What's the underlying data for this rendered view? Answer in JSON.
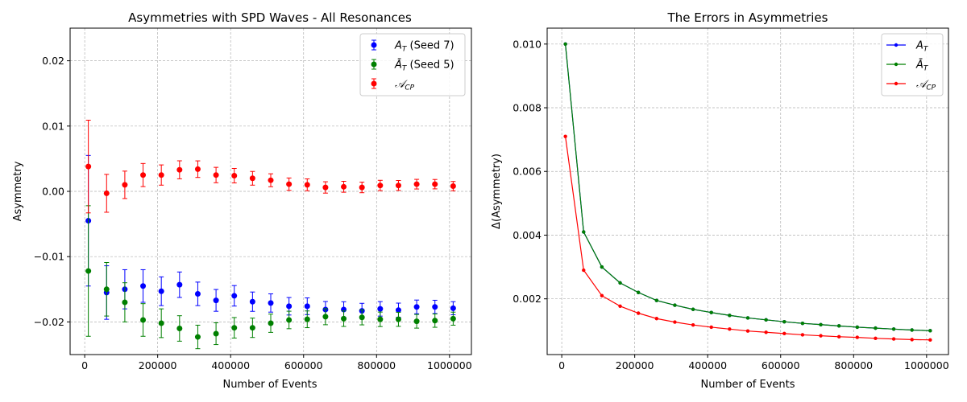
{
  "chart_data": [
    {
      "type": "scatter",
      "title": "Asymmetries with SPD Waves - All Resonances",
      "xlabel": "Number of Events",
      "ylabel": "Asymmetry",
      "xlim": [
        -40000,
        1060000
      ],
      "ylim": [
        -0.025,
        0.025
      ],
      "xticks": [
        0,
        200000,
        400000,
        600000,
        800000,
        1000000
      ],
      "xtick_labels": [
        "0",
        "200000",
        "400000",
        "600000",
        "800000",
        "1000000"
      ],
      "yticks": [
        -0.02,
        -0.01,
        0.0,
        0.01,
        0.02
      ],
      "ytick_labels": [
        "−0.02",
        "−0.01",
        "0.00",
        "0.01",
        "0.02"
      ],
      "grid": true,
      "legend_position": "top-right",
      "x": [
        10000,
        60000,
        110000,
        160000,
        210000,
        260000,
        310000,
        360000,
        410000,
        460000,
        510000,
        560000,
        610000,
        660000,
        710000,
        760000,
        810000,
        860000,
        910000,
        960000,
        1010000
      ],
      "series": [
        {
          "name": "A_T (Seed 7)",
          "legend_main": "A",
          "legend_sub": "T",
          "legend_suffix": " (Seed 7)",
          "color": "#0000ff",
          "values": [
            -0.0045,
            -0.0155,
            -0.015,
            -0.0145,
            -0.0153,
            -0.0143,
            -0.0157,
            -0.0167,
            -0.016,
            -0.0169,
            -0.0171,
            -0.0176,
            -0.0176,
            -0.0181,
            -0.0181,
            -0.0183,
            -0.018,
            -0.0182,
            -0.0177,
            -0.0177,
            -0.0179
          ],
          "errors": [
            0.01,
            0.0041,
            0.003,
            0.0025,
            0.0022,
            0.00195,
            0.0018,
            0.00167,
            0.00157,
            0.00148,
            0.0014,
            0.00134,
            0.00128,
            0.00123,
            0.00119,
            0.00115,
            0.00111,
            0.00108,
            0.00105,
            0.00102,
            0.001
          ]
        },
        {
          "name": "Ā_T (Seed 5)",
          "legend_main": "Ā",
          "legend_sub": "T",
          "legend_suffix": " (Seed 5)",
          "color": "#008000",
          "values": [
            -0.0122,
            -0.015,
            -0.017,
            -0.0197,
            -0.0202,
            -0.021,
            -0.0223,
            -0.0218,
            -0.0209,
            -0.0209,
            -0.0202,
            -0.0197,
            -0.0196,
            -0.0192,
            -0.0195,
            -0.0193,
            -0.0196,
            -0.0196,
            -0.0199,
            -0.0198,
            -0.0195
          ],
          "errors": [
            0.01,
            0.0041,
            0.003,
            0.0025,
            0.0022,
            0.00195,
            0.0018,
            0.00167,
            0.00157,
            0.00148,
            0.0014,
            0.00134,
            0.00128,
            0.00123,
            0.00119,
            0.00115,
            0.00111,
            0.00108,
            0.00105,
            0.00102,
            0.001
          ]
        },
        {
          "name": "A_CP",
          "legend_main": "𝒜",
          "legend_sub": "CP",
          "legend_suffix": "",
          "color": "#ff0000",
          "values": [
            0.0038,
            -0.0003,
            0.001,
            0.0025,
            0.0025,
            0.0033,
            0.0034,
            0.0025,
            0.0024,
            0.002,
            0.0017,
            0.0011,
            0.001,
            0.0006,
            0.0007,
            0.0006,
            0.0009,
            0.0009,
            0.0011,
            0.0011,
            0.0008
          ],
          "errors": [
            0.0071,
            0.0029,
            0.0021,
            0.00177,
            0.00155,
            0.00138,
            0.00127,
            0.00118,
            0.00111,
            0.00105,
            0.00099,
            0.00095,
            0.00091,
            0.00087,
            0.00084,
            0.00081,
            0.00079,
            0.00076,
            0.00074,
            0.00072,
            0.00071
          ]
        }
      ]
    },
    {
      "type": "line",
      "title": "The Errors in Asymmetries",
      "xlabel": "Number of Events",
      "ylabel": "Δ(Asymmetry)",
      "xlim": [
        -40000,
        1060000
      ],
      "ylim": [
        0.00025,
        0.0105
      ],
      "xticks": [
        0,
        200000,
        400000,
        600000,
        800000,
        1000000
      ],
      "xtick_labels": [
        "0",
        "200000",
        "400000",
        "600000",
        "800000",
        "1000000"
      ],
      "yticks": [
        0.002,
        0.004,
        0.006,
        0.008,
        0.01
      ],
      "ytick_labels": [
        "0.002",
        "0.004",
        "0.006",
        "0.008",
        "0.010"
      ],
      "grid": true,
      "legend_position": "top-right",
      "x": [
        10000,
        60000,
        110000,
        160000,
        210000,
        260000,
        310000,
        360000,
        410000,
        460000,
        510000,
        560000,
        610000,
        660000,
        710000,
        760000,
        810000,
        860000,
        910000,
        960000,
        1010000
      ],
      "series": [
        {
          "name": "A_T",
          "legend_main": "A",
          "legend_sub": "T",
          "legend_suffix": "",
          "color": "#0000ff",
          "values": [
            0.01,
            0.0041,
            0.003,
            0.0025,
            0.0022,
            0.00195,
            0.0018,
            0.00167,
            0.00157,
            0.00148,
            0.0014,
            0.00134,
            0.00128,
            0.00123,
            0.00119,
            0.00115,
            0.00111,
            0.00108,
            0.00105,
            0.00102,
            0.001
          ]
        },
        {
          "name": "Ā_T",
          "legend_main": "Ā",
          "legend_sub": "T",
          "legend_suffix": "",
          "color": "#008000",
          "values": [
            0.01,
            0.0041,
            0.003,
            0.0025,
            0.0022,
            0.00195,
            0.0018,
            0.00167,
            0.00157,
            0.00148,
            0.0014,
            0.00134,
            0.00128,
            0.00123,
            0.00119,
            0.00115,
            0.00111,
            0.00108,
            0.00105,
            0.00102,
            0.001
          ]
        },
        {
          "name": "A_CP",
          "legend_main": "𝒜",
          "legend_sub": "CP",
          "legend_suffix": "",
          "color": "#ff0000",
          "values": [
            0.0071,
            0.0029,
            0.0021,
            0.00177,
            0.00155,
            0.00138,
            0.00127,
            0.00118,
            0.00111,
            0.00105,
            0.00099,
            0.00095,
            0.00091,
            0.00087,
            0.00084,
            0.00081,
            0.00079,
            0.00076,
            0.00074,
            0.00072,
            0.00071
          ]
        }
      ]
    }
  ]
}
